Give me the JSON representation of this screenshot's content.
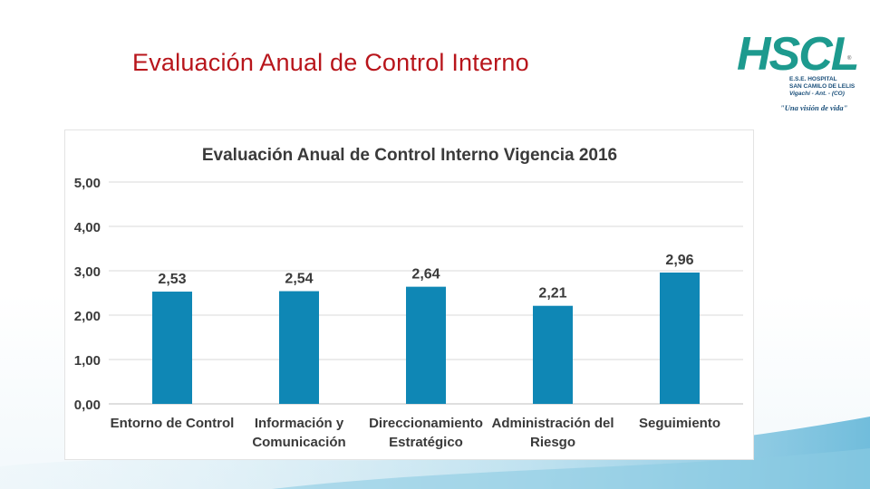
{
  "slide": {
    "title": "Evaluación Anual de Control Interno"
  },
  "logo": {
    "letters": "HSCL",
    "line1": "E.S.E. HOSPITAL",
    "line2": "SAN CAMILO DE LELIS",
    "line3": "Vigachí - Ant. - (CO)",
    "slogan": "\"Una visión de vida\"",
    "registered": "®"
  },
  "chart_data": {
    "type": "bar",
    "title": "Evaluación Anual de Control Interno Vigencia 2016",
    "categories": [
      [
        "Entorno de Control"
      ],
      [
        "Información y",
        "Comunicación"
      ],
      [
        "Direccionamiento",
        "Estratégico"
      ],
      [
        "Administración del",
        "Riesgo"
      ],
      [
        "Seguimiento"
      ]
    ],
    "values": [
      2.53,
      2.54,
      2.64,
      2.21,
      2.96
    ],
    "value_labels": [
      "2,53",
      "2,54",
      "2,64",
      "2,21",
      "2,96"
    ],
    "ylim": [
      0,
      5
    ],
    "yticks": [
      0,
      1,
      2,
      3,
      4,
      5
    ],
    "ytick_labels": [
      "0,00",
      "1,00",
      "2,00",
      "3,00",
      "4,00",
      "5,00"
    ],
    "grid": true,
    "legend": "none",
    "bar_color": "#0f87b5",
    "xlabel": "",
    "ylabel": ""
  }
}
